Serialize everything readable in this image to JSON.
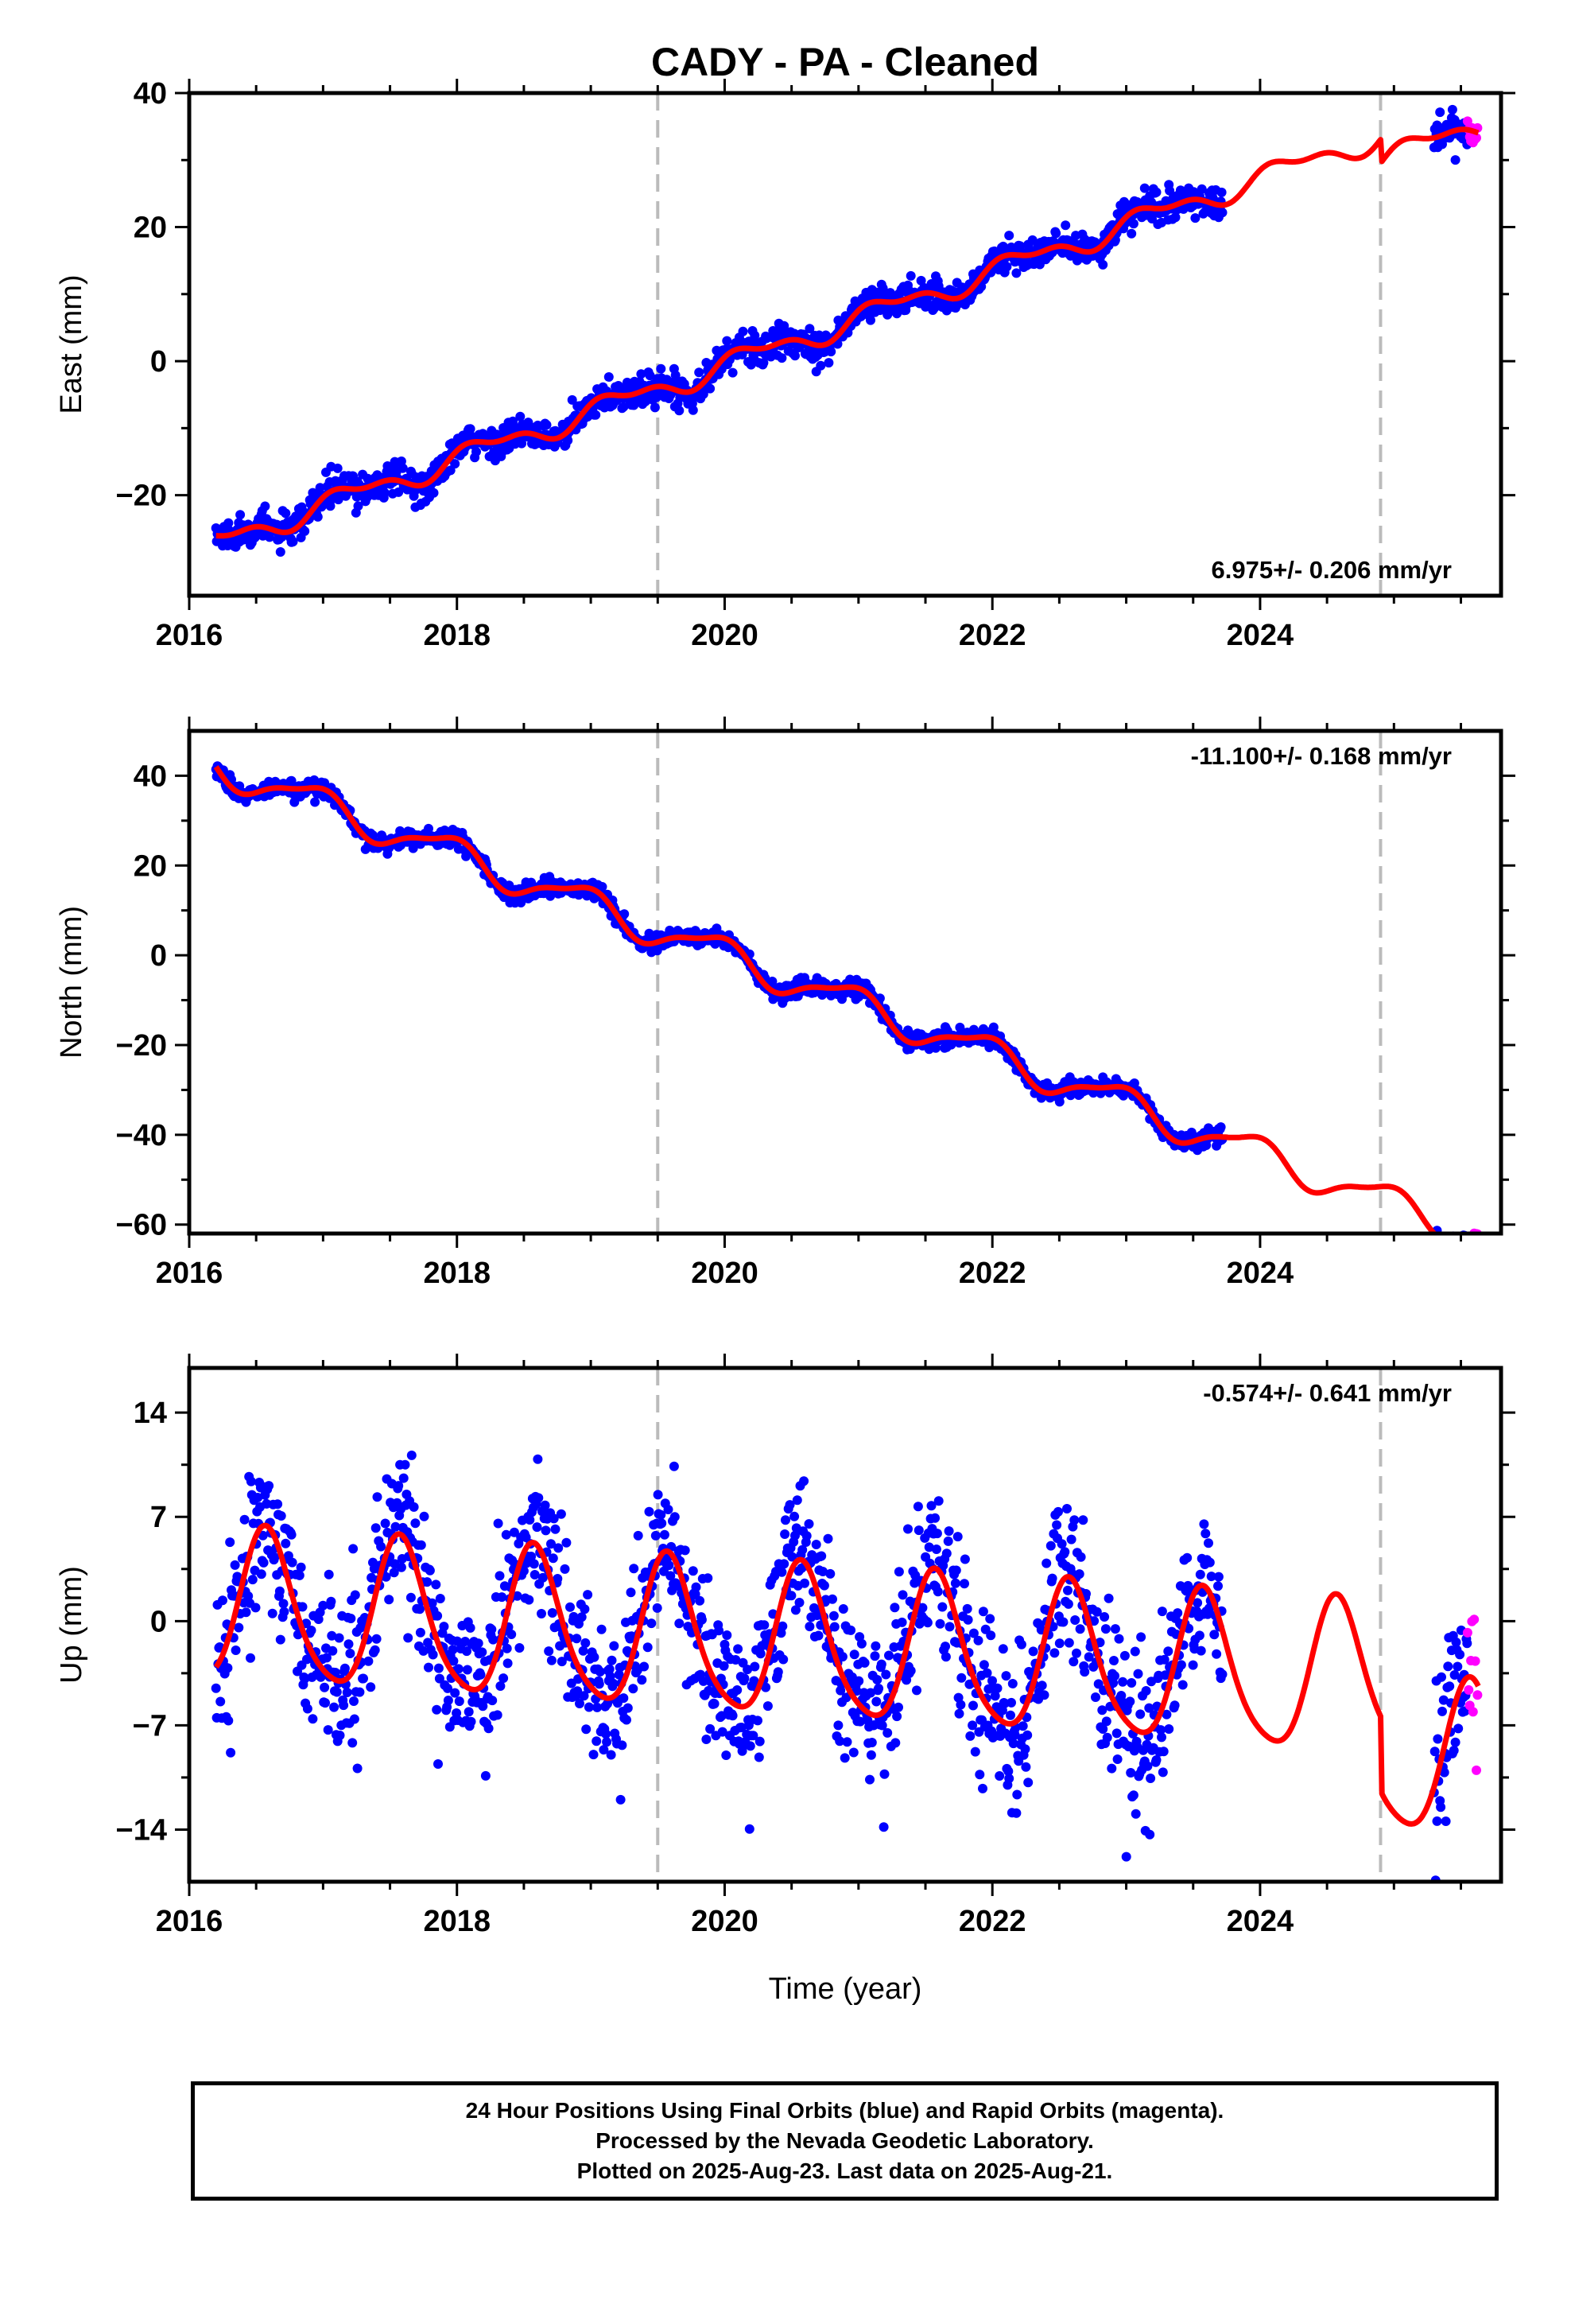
{
  "title": "CADY  - PA - Cleaned",
  "xlabel": "Time (year)",
  "footer": {
    "line1": "24 Hour Positions Using Final Orbits (blue) and Rapid Orbits (magenta).",
    "line2": "Processed by the Nevada Geodetic Laboratory.",
    "line3": "Plotted on 2025-Aug-23. Last data on 2025-Aug-21."
  },
  "colors": {
    "final_orbits": "#0000ff",
    "rapid_orbits": "#ff00ff",
    "model": "#ff0000",
    "event_lines": "#bbbbbb"
  },
  "chart_data": [
    {
      "type": "scatter",
      "component": "east",
      "ylabel": "East (mm)",
      "rate_label": "6.975+/- 0.206 mm/yr",
      "rate_position": "bottom-right",
      "xlim": [
        2016,
        2025.8
      ],
      "ylim": [
        -35,
        40
      ],
      "xticks": [
        2016,
        2018,
        2020,
        2022,
        2024
      ],
      "yticks": [
        -20,
        0,
        20,
        40
      ],
      "event_lines": [
        2019.5,
        2024.9
      ],
      "data_range_final": [
        2016.2,
        2023.72
      ],
      "data_range_final_2": [
        2025.3,
        2025.55
      ],
      "data_range_rapid": [
        2025.55,
        2025.63
      ],
      "model": {
        "rate": 6.975,
        "intercept_2016": -28.5,
        "annual_amp": 1.5,
        "annual_phase": 0.3,
        "semiannual_amp": 0.8,
        "semiannual_phase": 1.2,
        "noise": 1.2,
        "offset_at": 2024.9,
        "offset": -3.5
      }
    },
    {
      "type": "scatter",
      "component": "north",
      "ylabel": "North (mm)",
      "rate_label": "-11.100+/- 0.168 mm/yr",
      "rate_position": "top-right",
      "xlim": [
        2016,
        2025.8
      ],
      "ylim": [
        -62,
        50
      ],
      "xticks": [
        2016,
        2018,
        2020,
        2022,
        2024
      ],
      "yticks": [
        -60,
        -40,
        -20,
        0,
        20,
        40
      ],
      "event_lines": [
        2019.5,
        2024.9
      ],
      "data_range_final": [
        2016.2,
        2023.72
      ],
      "data_range_final_2": [
        2025.3,
        2025.55
      ],
      "data_range_rapid": [
        2025.55,
        2025.63
      ],
      "model": {
        "rate": -11.1,
        "intercept_2016": 44.5,
        "annual_amp": 3.5,
        "annual_phase": 2.0,
        "semiannual_amp": 1.0,
        "semiannual_phase": 0.5,
        "noise": 0.9,
        "offset_at": 2024.9,
        "offset": 0
      }
    },
    {
      "type": "scatter",
      "component": "up",
      "ylabel": "Up (mm)",
      "rate_label": "-0.574+/- 0.641 mm/yr",
      "rate_position": "top-right",
      "xlim": [
        2016,
        2025.8
      ],
      "ylim": [
        -17.5,
        17
      ],
      "xticks": [
        2016,
        2018,
        2020,
        2022,
        2024
      ],
      "yticks": [
        -14,
        -7,
        0,
        7,
        14
      ],
      "event_lines": [
        2019.5,
        2024.9
      ],
      "data_range_final": [
        2016.2,
        2023.72
      ],
      "data_range_final_2": [
        2025.3,
        2025.55
      ],
      "data_range_rapid": [
        2025.55,
        2025.63
      ],
      "model": {
        "rate": -0.574,
        "intercept_2016": 1.0,
        "annual_amp": 5.0,
        "annual_phase": 4.2,
        "semiannual_amp": 0.8,
        "semiannual_phase": 1.0,
        "noise": 2.6,
        "offset_at": 2024.9,
        "offset": -5.0
      }
    }
  ]
}
